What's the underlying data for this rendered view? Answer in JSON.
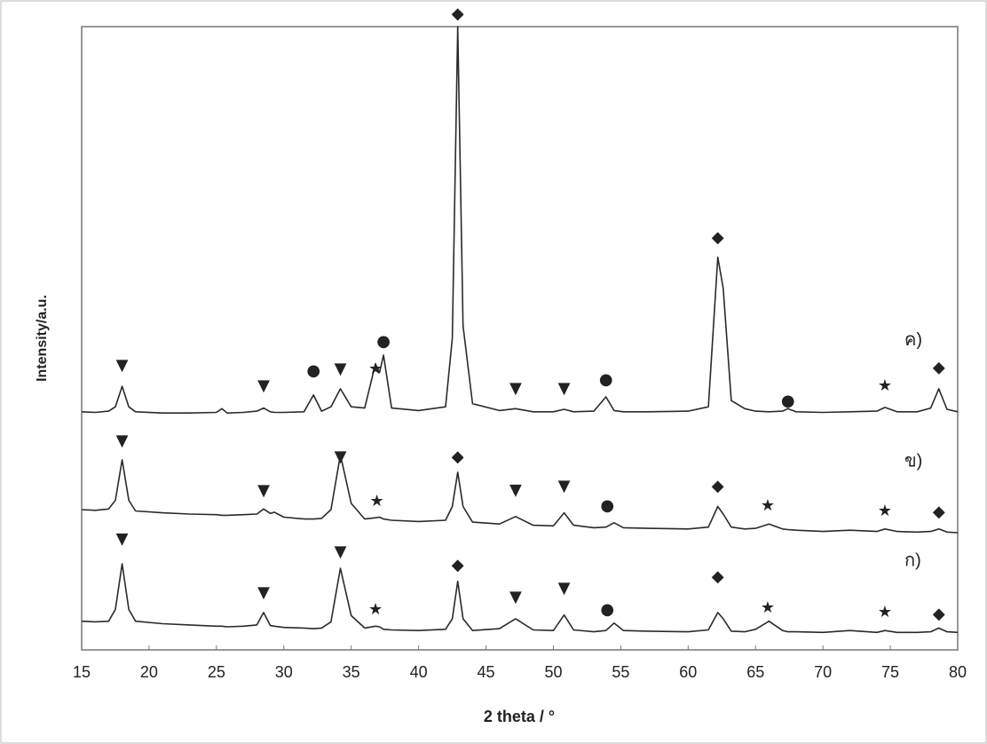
{
  "chart_data": {
    "type": "line",
    "x_label": "2 theta / °",
    "y_label": "Intensity/a.u.",
    "xlim": [
      15,
      80
    ],
    "xticks": [
      15,
      20,
      25,
      30,
      35,
      40,
      45,
      50,
      55,
      60,
      65,
      70,
      75,
      80
    ],
    "ylim": [
      0,
      100
    ],
    "x": [
      15,
      16,
      17,
      17.5,
      18,
      18.5,
      19,
      21,
      23,
      25,
      25.4,
      25.8,
      27,
      28,
      28.5,
      29,
      29.3,
      30,
      31.5,
      32.2,
      32.8,
      33.5,
      34.2,
      35,
      36,
      36.8,
      37.1,
      37.4,
      38,
      40,
      42,
      42.5,
      42.9,
      43.3,
      44,
      46,
      47.2,
      48.5,
      50,
      50.8,
      51.5,
      53,
      53.9,
      54.5,
      55.2,
      57,
      60,
      61.5,
      62.2,
      62.6,
      63.2,
      64.2,
      65,
      66,
      67,
      67.4,
      68,
      70,
      72,
      74,
      74.6,
      75.5,
      77,
      78,
      78.6,
      79.2,
      80
    ],
    "series": [
      {
        "name": "ค)",
        "color": "#2a2a2a",
        "values": [
          38.2,
          38.1,
          38.3,
          39,
          42.3,
          39,
          38.2,
          38,
          38,
          38.1,
          38.7,
          38,
          38.1,
          38.3,
          38.8,
          38.2,
          38.1,
          38.1,
          38.2,
          40.9,
          38.3,
          39,
          41.9,
          39,
          38.8,
          45.9,
          44.5,
          47.3,
          38.8,
          38.4,
          39,
          50,
          100,
          52,
          39.5,
          38.4,
          38.7,
          38.2,
          38.2,
          38.6,
          38.2,
          38.3,
          40.6,
          38.4,
          38.2,
          38.2,
          38.3,
          39,
          63,
          58,
          40,
          38.7,
          38.3,
          38.2,
          38.3,
          38.7,
          38.2,
          38.1,
          38.2,
          38.3,
          38.9,
          38.2,
          38.2,
          38.8,
          41.9,
          38.6,
          38.2
        ]
      },
      {
        "name": "ข)",
        "color": "#2a2a2a",
        "values": [
          22.5,
          22.4,
          22.6,
          24,
          30.5,
          24,
          22.3,
          22,
          21.8,
          21.7,
          21.6,
          21.6,
          21.7,
          21.8,
          22.6,
          21.9,
          22.1,
          21.3,
          21,
          21,
          21.1,
          22.5,
          31.3,
          23.5,
          21,
          21.2,
          21.3,
          21,
          20.8,
          20.6,
          20.8,
          23,
          28.5,
          23,
          20.5,
          20.2,
          21.4,
          20,
          19.9,
          22,
          20,
          19.6,
          19.7,
          20.4,
          19.6,
          19.5,
          19.4,
          19.7,
          23,
          21.8,
          19.7,
          19.4,
          19.5,
          20.2,
          19.4,
          19.3,
          19.2,
          19,
          19.2,
          19,
          19.4,
          19,
          18.9,
          19,
          19.4,
          18.9,
          18.8
        ]
      },
      {
        "name": "ก)",
        "color": "#2a2a2a",
        "values": [
          4.6,
          4.5,
          4.6,
          6.5,
          13.8,
          6.5,
          4.6,
          4.2,
          4,
          3.8,
          3.8,
          3.7,
          3.8,
          4,
          6,
          3.9,
          3.8,
          3.6,
          3.5,
          3.4,
          3.5,
          4.5,
          13.1,
          5.5,
          3.5,
          3.8,
          3.7,
          3.3,
          3.2,
          3.1,
          3.3,
          5,
          11,
          5,
          3.1,
          3.4,
          5,
          3.2,
          3.1,
          5.6,
          3.2,
          2.9,
          3.1,
          4.3,
          3.1,
          3,
          2.9,
          3.2,
          6,
          5,
          3,
          2.9,
          3.3,
          4.6,
          3.1,
          2.9,
          2.9,
          2.8,
          3.1,
          2.8,
          3.1,
          2.8,
          2.8,
          2.9,
          3.5,
          2.9,
          2.8
        ]
      }
    ],
    "annotations": [
      {
        "text": "▼",
        "x": 18,
        "y": 45.6
      },
      {
        "text": "▼",
        "x": 28.5,
        "y": 42.3
      },
      {
        "text": "●",
        "x": 32.2,
        "y": 44.7
      },
      {
        "text": "▼",
        "x": 34.2,
        "y": 45
      },
      {
        "text": "★",
        "x": 36.8,
        "y": 45
      },
      {
        "text": "●",
        "x": 37.4,
        "y": 49.4
      },
      {
        "text": "◆",
        "x": 42.9,
        "y": 102
      },
      {
        "text": "▼",
        "x": 47.2,
        "y": 41.9
      },
      {
        "text": "▼",
        "x": 50.8,
        "y": 41.9
      },
      {
        "text": "●",
        "x": 53.9,
        "y": 43.3
      },
      {
        "text": "◆",
        "x": 62.2,
        "y": 66.1
      },
      {
        "text": "●",
        "x": 67.4,
        "y": 39.9
      },
      {
        "text": "★",
        "x": 74.6,
        "y": 42.3
      },
      {
        "text": "◆",
        "x": 78.6,
        "y": 45.2
      },
      {
        "text": "▼",
        "x": 18,
        "y": 33.5
      },
      {
        "text": "▼",
        "x": 28.5,
        "y": 25.5
      },
      {
        "text": "▼",
        "x": 34.2,
        "y": 30.9
      },
      {
        "text": "★",
        "x": 36.9,
        "y": 23.8
      },
      {
        "text": "◆",
        "x": 42.9,
        "y": 30.9
      },
      {
        "text": "▼",
        "x": 47.2,
        "y": 25.6
      },
      {
        "text": "▼",
        "x": 50.8,
        "y": 26.2
      },
      {
        "text": "●",
        "x": 54,
        "y": 23.1
      },
      {
        "text": "◆",
        "x": 62.2,
        "y": 26.2
      },
      {
        "text": "★",
        "x": 65.9,
        "y": 23.1
      },
      {
        "text": "★",
        "x": 74.6,
        "y": 22.2
      },
      {
        "text": "◆",
        "x": 78.6,
        "y": 22.1
      },
      {
        "text": "▼",
        "x": 18,
        "y": 17.7
      },
      {
        "text": "▼",
        "x": 28.5,
        "y": 9.1
      },
      {
        "text": "▼",
        "x": 34.2,
        "y": 15.7
      },
      {
        "text": "★",
        "x": 36.8,
        "y": 6.4
      },
      {
        "text": "◆",
        "x": 42.9,
        "y": 13.5
      },
      {
        "text": "▼",
        "x": 47.2,
        "y": 8.4
      },
      {
        "text": "▼",
        "x": 50.8,
        "y": 9.8
      },
      {
        "text": "●",
        "x": 54,
        "y": 6.4
      },
      {
        "text": "◆",
        "x": 62.2,
        "y": 11.7
      },
      {
        "text": "★",
        "x": 65.9,
        "y": 6.7
      },
      {
        "text": "★",
        "x": 74.6,
        "y": 6
      },
      {
        "text": "◆",
        "x": 78.6,
        "y": 5.7
      }
    ]
  }
}
